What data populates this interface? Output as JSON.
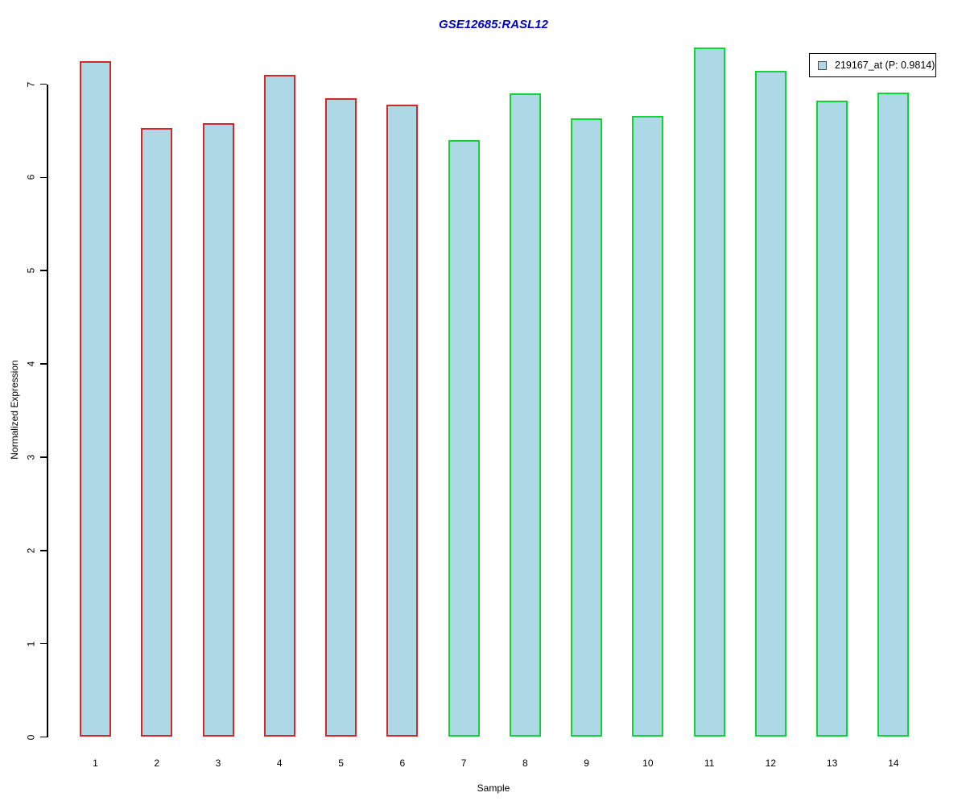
{
  "window": {
    "background": "#ffffff"
  },
  "chart_data": {
    "type": "bar",
    "title": "GSE12685:RASL12",
    "title_color": "#0000cc",
    "xlabel": "Sample",
    "ylabel": "Normalized Expression",
    "ylim": [
      0,
      7.5
    ],
    "yticks": [
      0,
      1,
      2,
      3,
      4,
      5,
      6,
      7
    ],
    "grid": false,
    "categories": [
      "1",
      "2",
      "3",
      "4",
      "5",
      "6",
      "7",
      "8",
      "9",
      "10",
      "11",
      "12",
      "13",
      "14"
    ],
    "values": [
      7.25,
      6.53,
      6.58,
      7.1,
      6.85,
      6.78,
      6.4,
      6.9,
      6.63,
      6.66,
      7.39,
      7.14,
      6.82,
      6.91
    ],
    "bar_fill": "#add8e6",
    "bar_border_colors": [
      "#d42828",
      "#d42828",
      "#d42828",
      "#d42828",
      "#d42828",
      "#d42828",
      "#11d434",
      "#11d434",
      "#11d434",
      "#11d434",
      "#11d434",
      "#11d434",
      "#11d434",
      "#11d434"
    ],
    "groups": [
      {
        "name": "red-outlined-samples",
        "border_color": "#d42828",
        "sample_indices": [
          1,
          2,
          3,
          4,
          5,
          6
        ]
      },
      {
        "name": "green-outlined-samples",
        "border_color": "#11d434",
        "sample_indices": [
          7,
          8,
          9,
          10,
          11,
          12,
          13,
          14
        ]
      }
    ],
    "legend": {
      "position": "top-right",
      "label": "219167_at (P: 0.9814)",
      "swatch_fill": "#add8e6",
      "swatch_border": "#4d4d4d"
    }
  }
}
